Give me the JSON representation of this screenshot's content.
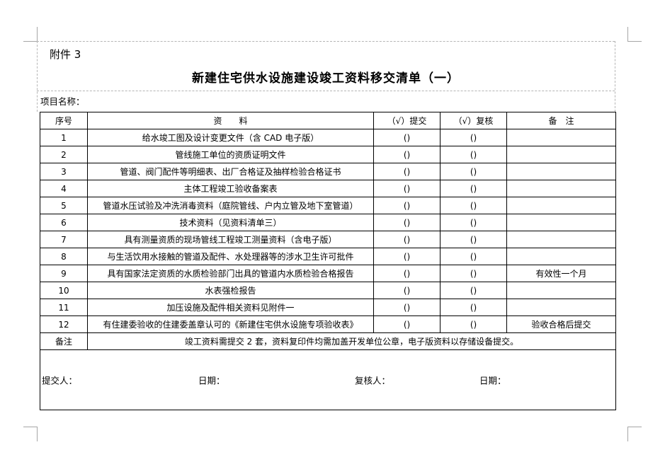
{
  "colors": {
    "table_border": "#000000",
    "boundary_dash": "#b5b5b5",
    "crop_mark": "#a6a6a6"
  },
  "page": {
    "attachment_label": "附件 3",
    "title": "新建住宅供水设施建设竣工资料移交清单（一）",
    "project_label": "项目名称："
  },
  "table": {
    "headers": {
      "no": "序号",
      "material": "资　　料",
      "submit": "（√）提交",
      "review": "（√）复核",
      "remark": "备　注"
    },
    "rows": [
      {
        "no": "1",
        "name": "给水竣工图及设计变更文件（含 CAD 电子版）",
        "submit": "()",
        "review": "()",
        "remark": ""
      },
      {
        "no": "2",
        "name": "管线施工单位的资质证明文件",
        "submit": "()",
        "review": "()",
        "remark": ""
      },
      {
        "no": "3",
        "name": "管道、阀门配件等明细表、出厂合格证及抽样检验合格证书",
        "submit": "()",
        "review": "()",
        "remark": ""
      },
      {
        "no": "4",
        "name": "主体工程竣工验收备案表",
        "submit": "()",
        "review": "()",
        "remark": ""
      },
      {
        "no": "5",
        "name": "管道水压试验及冲洗消毒资料（庭院管线、户内立管及地下室管道）",
        "submit": "()",
        "review": "()",
        "remark": ""
      },
      {
        "no": "6",
        "name": "技术资料（见资料清单三）",
        "submit": "()",
        "review": "()",
        "remark": ""
      },
      {
        "no": "7",
        "name": "具有测量资质的现场管线工程竣工测量资料（含电子版）",
        "submit": "()",
        "review": "()",
        "remark": ""
      },
      {
        "no": "8",
        "name": "与生活饮用水接触的管道及配件、水处理器等的涉水卫生许可批件",
        "submit": "()",
        "review": "()",
        "remark": ""
      },
      {
        "no": "9",
        "name": "具有国家法定资质的水质检验部门出具的管道内水质检验合格报告",
        "submit": "()",
        "review": "()",
        "remark": "有效性一个月"
      },
      {
        "no": "10",
        "name": "水表强检报告",
        "submit": "()",
        "review": "()",
        "remark": ""
      },
      {
        "no": "11",
        "name": "加压设施及配件相关资料见附件一",
        "submit": "()",
        "review": "()",
        "remark": ""
      },
      {
        "no": "12",
        "name": "有住建委验收的住建委盖章认可的《新建住宅供水设施专项验收表》",
        "submit": "()",
        "review": "()",
        "remark": "验收合格后提交"
      }
    ],
    "note_row": {
      "label": "备注",
      "text": "竣工资料需提交 2 套，资料复印件均需加盖开发单位公章，电子版资料以存储设备提交。"
    },
    "footer_row": {
      "submitter_label": "提交人：",
      "date1_label": "日期：",
      "reviewer_label": "复核人：",
      "date2_label": "日期："
    }
  }
}
